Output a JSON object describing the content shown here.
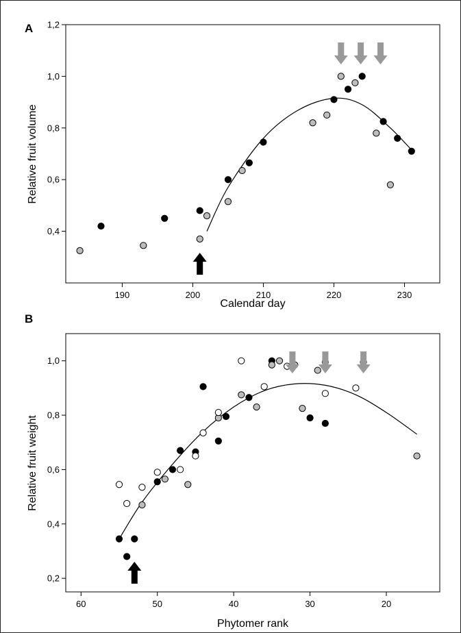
{
  "figure": {
    "colors": {
      "frame": "#000000",
      "black_marker": "#000000",
      "grey_marker": "#bdbdbd",
      "open_marker": "#ffffff",
      "arrow_grey": "#999999",
      "arrow_black": "#000000"
    }
  },
  "chart_data": [
    {
      "type": "scatter",
      "panel_label": "A",
      "xlabel": "Calendar day",
      "ylabel": "Relative fruit volume",
      "xlim": [
        182,
        235
      ],
      "ylim": [
        0.2,
        1.2
      ],
      "xticks": [
        190,
        200,
        210,
        220,
        230
      ],
      "xtick_labels": [
        "190",
        "200",
        "210",
        "220",
        "230"
      ],
      "yticks": [
        0.4,
        0.6,
        0.8,
        1.0,
        1.2
      ],
      "ytick_labels": [
        "0,4",
        "0,6",
        "0,8",
        "1,0",
        "1,2"
      ],
      "series": [
        {
          "marker": "black",
          "points": [
            [
              187,
              0.42
            ],
            [
              196,
              0.45
            ],
            [
              201,
              0.48
            ],
            [
              205,
              0.6
            ],
            [
              208,
              0.665
            ],
            [
              210,
              0.745
            ],
            [
              220,
              0.91
            ],
            [
              222,
              0.95
            ],
            [
              224,
              1.0
            ],
            [
              227,
              0.825
            ],
            [
              229,
              0.76
            ],
            [
              231,
              0.71
            ]
          ]
        },
        {
          "marker": "grey",
          "points": [
            [
              184,
              0.325
            ],
            [
              193,
              0.345
            ],
            [
              201,
              0.37
            ],
            [
              202,
              0.46
            ],
            [
              205,
              0.515
            ],
            [
              207,
              0.635
            ],
            [
              217,
              0.82
            ],
            [
              219,
              0.85
            ],
            [
              221,
              1.0
            ],
            [
              223,
              0.975
            ],
            [
              226,
              0.78
            ],
            [
              228,
              0.58
            ]
          ]
        }
      ],
      "fit_curve": {
        "type": "quadratic",
        "x_range": [
          202,
          231
        ],
        "points": [
          [
            202,
            0.4
          ],
          [
            205,
            0.57
          ],
          [
            210,
            0.76
          ],
          [
            215,
            0.87
          ],
          [
            220,
            0.915
          ],
          [
            224,
            0.89
          ],
          [
            228,
            0.8
          ],
          [
            231,
            0.715
          ]
        ]
      },
      "arrows": [
        {
          "color": "black",
          "x": 201,
          "direction": "up"
        },
        {
          "color": "grey",
          "x": 221,
          "direction": "down"
        },
        {
          "color": "grey",
          "x": 223.8,
          "direction": "down"
        },
        {
          "color": "grey",
          "x": 226.6,
          "direction": "down"
        }
      ]
    },
    {
      "type": "scatter",
      "panel_label": "B",
      "xlabel": "Phytomer rank",
      "ylabel": "Relative fruit weight",
      "xlim": [
        62,
        13
      ],
      "ylim": [
        0.15,
        1.1
      ],
      "xticks": [
        60,
        50,
        40,
        30,
        20
      ],
      "xtick_labels": [
        "60",
        "50",
        "40",
        "30",
        "20"
      ],
      "yticks": [
        0.2,
        0.4,
        0.6,
        0.8,
        1.0
      ],
      "ytick_labels": [
        "0,2",
        "0,4",
        "0,6",
        "0,8",
        "1,0"
      ],
      "series": [
        {
          "marker": "black",
          "points": [
            [
              55,
              0.345
            ],
            [
              54,
              0.28
            ],
            [
              53,
              0.345
            ],
            [
              50,
              0.555
            ],
            [
              48,
              0.6
            ],
            [
              47,
              0.67
            ],
            [
              45,
              0.665
            ],
            [
              44,
              0.905
            ],
            [
              42,
              0.705
            ],
            [
              41,
              0.795
            ],
            [
              38,
              0.865
            ],
            [
              35,
              1.0
            ],
            [
              30,
              0.79
            ],
            [
              28,
              0.77
            ]
          ]
        },
        {
          "marker": "grey",
          "points": [
            [
              52,
              0.47
            ],
            [
              49,
              0.565
            ],
            [
              46,
              0.545
            ],
            [
              42,
              0.79
            ],
            [
              39,
              0.875
            ],
            [
              37,
              0.83
            ],
            [
              35,
              0.985
            ],
            [
              34,
              1.0
            ],
            [
              32,
              0.985
            ],
            [
              31,
              0.825
            ],
            [
              29,
              0.965
            ],
            [
              28,
              0.995
            ],
            [
              23,
              0.995
            ],
            [
              16,
              0.65
            ]
          ]
        },
        {
          "marker": "open",
          "points": [
            [
              55,
              0.545
            ],
            [
              54,
              0.475
            ],
            [
              52,
              0.535
            ],
            [
              50,
              0.59
            ],
            [
              47,
              0.6
            ],
            [
              45,
              0.65
            ],
            [
              44,
              0.735
            ],
            [
              42,
              0.81
            ],
            [
              39,
              1.0
            ],
            [
              36,
              0.905
            ],
            [
              33,
              0.98
            ],
            [
              28,
              0.88
            ],
            [
              24,
              0.9
            ]
          ]
        }
      ],
      "fit_curve": {
        "type": "quadratic",
        "x_range": [
          55,
          16
        ],
        "points": [
          [
            55,
            0.345
          ],
          [
            52,
            0.48
          ],
          [
            48,
            0.62
          ],
          [
            44,
            0.74
          ],
          [
            40,
            0.83
          ],
          [
            36,
            0.89
          ],
          [
            32,
            0.915
          ],
          [
            28,
            0.91
          ],
          [
            24,
            0.875
          ],
          [
            20,
            0.81
          ],
          [
            16,
            0.73
          ]
        ]
      },
      "arrows": [
        {
          "color": "black",
          "x": 53,
          "direction": "up"
        },
        {
          "color": "grey",
          "x": 32.3,
          "direction": "down"
        },
        {
          "color": "grey",
          "x": 28,
          "direction": "down"
        },
        {
          "color": "grey",
          "x": 23,
          "direction": "down"
        }
      ]
    }
  ]
}
